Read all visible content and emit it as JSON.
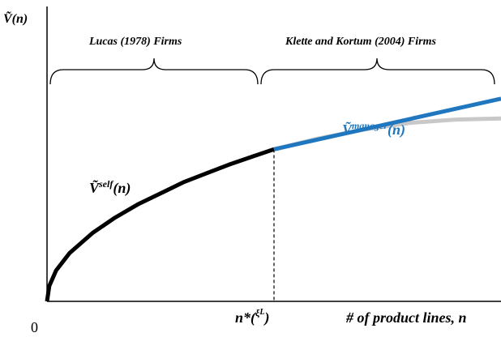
{
  "chart_data": {
    "type": "line",
    "y_axis_label": {
      "main": "Ṽ",
      "suffix": "(n)"
    },
    "x_axis_label": "# of product lines, n",
    "origin_label": "0",
    "threshold": {
      "value": 0.5,
      "label_main": "n*(",
      "label_sup": "ξ",
      "label_sup2": "L",
      "label_end": ")"
    },
    "regions": [
      {
        "label": "Lucas (1978) Firms",
        "from": 0,
        "to": 0.5
      },
      {
        "label": "Klette and Kortum (2004) Firms",
        "from": 0.5,
        "to": 1.0
      }
    ],
    "xlim": [
      0,
      1
    ],
    "ylim": [
      0,
      1
    ],
    "series": [
      {
        "name_main": "Ṽ",
        "name_sup": "self",
        "name_end": "(n)",
        "color": "#000000",
        "x": [
          0,
          0.005,
          0.02,
          0.05,
          0.1,
          0.15,
          0.2,
          0.25,
          0.3,
          0.35,
          0.4,
          0.45,
          0.5
        ],
        "y": [
          0,
          0.07,
          0.14,
          0.22,
          0.31,
          0.38,
          0.44,
          0.49,
          0.54,
          0.58,
          0.62,
          0.655,
          0.69
        ]
      },
      {
        "name_main": "Ṽ",
        "name_sup": "manager",
        "name_end": "(n)",
        "color": "#1f77c0",
        "x": [
          0.5,
          1.0
        ],
        "y": [
          0.69,
          0.92
        ]
      },
      {
        "name": "",
        "color": "#c8c8c8",
        "x": [
          0.5,
          0.6,
          0.7,
          0.8,
          0.9,
          1.0
        ],
        "y": [
          0.69,
          0.74,
          0.78,
          0.81,
          0.825,
          0.83
        ]
      }
    ]
  }
}
